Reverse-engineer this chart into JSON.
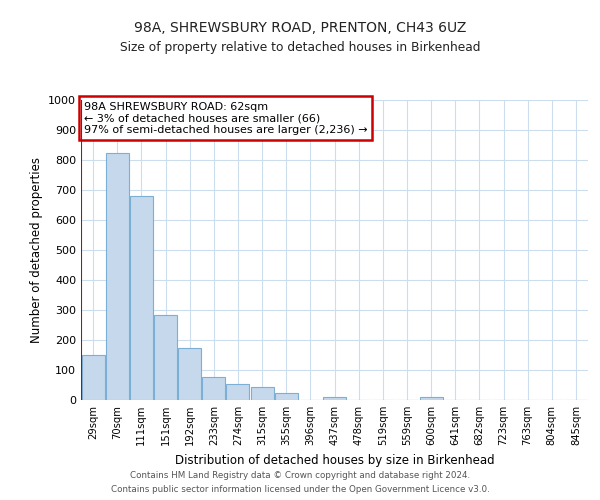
{
  "title": "98A, SHREWSBURY ROAD, PRENTON, CH43 6UZ",
  "subtitle": "Size of property relative to detached houses in Birkenhead",
  "xlabel": "Distribution of detached houses by size in Birkenhead",
  "ylabel": "Number of detached properties",
  "bar_labels": [
    "29sqm",
    "70sqm",
    "111sqm",
    "151sqm",
    "192sqm",
    "233sqm",
    "274sqm",
    "315sqm",
    "355sqm",
    "396sqm",
    "437sqm",
    "478sqm",
    "519sqm",
    "559sqm",
    "600sqm",
    "641sqm",
    "682sqm",
    "723sqm",
    "763sqm",
    "804sqm",
    "845sqm"
  ],
  "bar_values": [
    150,
    825,
    680,
    285,
    172,
    78,
    53,
    42,
    22,
    0,
    10,
    0,
    0,
    0,
    10,
    0,
    0,
    0,
    0,
    0,
    0
  ],
  "bar_color": "#c6d9ec",
  "bar_edge_color": "#7bafd4",
  "annotation_line1": "98A SHREWSBURY ROAD: 62sqm",
  "annotation_line2": "← 3% of detached houses are smaller (66)",
  "annotation_line3": "97% of semi-detached houses are larger (2,236) →",
  "annotation_box_color": "#ffffff",
  "annotation_box_edge": "#cc0000",
  "vline_color": "#cc0000",
  "ylim": [
    0,
    1000
  ],
  "yticks": [
    0,
    100,
    200,
    300,
    400,
    500,
    600,
    700,
    800,
    900,
    1000
  ],
  "grid_color": "#ccddee",
  "bg_color": "#ffffff",
  "footer_line1": "Contains HM Land Registry data © Crown copyright and database right 2024.",
  "footer_line2": "Contains public sector information licensed under the Open Government Licence v3.0."
}
